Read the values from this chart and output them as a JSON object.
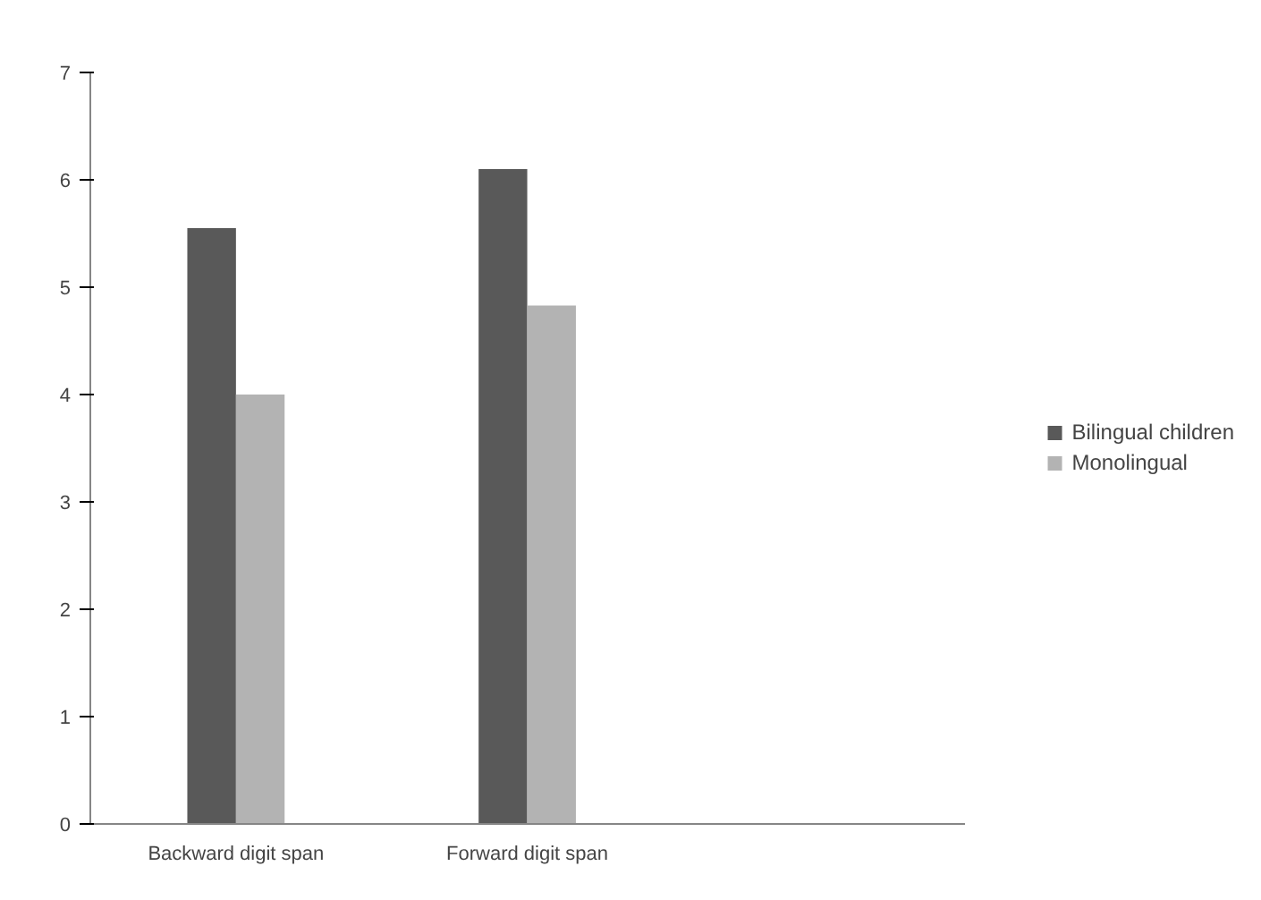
{
  "chart_data": {
    "type": "bar",
    "categories": [
      "Backward digit span",
      "Forward digit span",
      null
    ],
    "series": [
      {
        "name": "Bilingual children",
        "color": "#595959",
        "values": [
          5.55,
          6.1,
          null
        ]
      },
      {
        "name": "Monolingual",
        "color": "#b3b3b3",
        "values": [
          4.0,
          4.83,
          null
        ]
      }
    ],
    "ylim": [
      0,
      7
    ],
    "yticks": [
      0,
      1,
      2,
      3,
      4,
      5,
      6,
      7
    ],
    "grid": false,
    "legend": "right"
  }
}
